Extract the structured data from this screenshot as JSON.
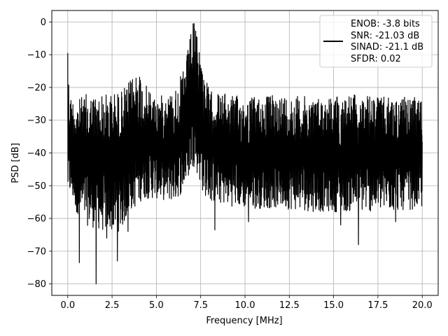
{
  "chart_data": {
    "type": "line",
    "title": "",
    "xlabel": "Frequency [MHz]",
    "ylabel": "PSD [dB]",
    "xlim": [
      -0.9,
      20.9
    ],
    "ylim": [
      -83.5,
      3.5
    ],
    "xticks": [
      0,
      2.5,
      5,
      7.5,
      10,
      12.5,
      15,
      17.5,
      20
    ],
    "xtick_labels": [
      "0.0",
      "2.5",
      "5.0",
      "7.5",
      "10.0",
      "12.5",
      "15.0",
      "17.5",
      "20.0"
    ],
    "yticks": [
      0,
      -10,
      -20,
      -30,
      -40,
      -50,
      -60,
      -70,
      -80
    ],
    "ytick_labels": [
      "0",
      "−10",
      "−20",
      "−30",
      "−40",
      "−50",
      "−60",
      "−70",
      "−80"
    ],
    "grid": true,
    "legend_position": "top-right",
    "line_color": "#000000",
    "series": [
      {
        "description": "dense noisy PSD trace; band between upper and lower envelopes, with a spectral peak near 7.1 MHz",
        "color": "#000000",
        "envelope": {
          "x": [
            0.0,
            0.1,
            0.5,
            1.0,
            2.0,
            3.0,
            3.5,
            4.0,
            4.2,
            5.0,
            6.0,
            6.5,
            6.8,
            7.0,
            7.1,
            7.2,
            7.4,
            7.6,
            8.0,
            9.0,
            10.0,
            12.0,
            14.0,
            16.0,
            18.0,
            20.0
          ],
          "upper": [
            -9.5,
            -22,
            -24,
            -22,
            -22,
            -21,
            -18,
            -13,
            -18,
            -23,
            -21,
            -15,
            -8,
            -1,
            0,
            -1,
            -6,
            -13,
            -21,
            -22,
            -23,
            -22,
            -23,
            -22,
            -23,
            -23
          ],
          "lower": [
            -55,
            -53,
            -58,
            -62,
            -64,
            -64,
            -58,
            -56,
            -54,
            -54,
            -55,
            -52,
            -48,
            -45,
            -44,
            -45,
            -48,
            -52,
            -55,
            -56,
            -57,
            -57,
            -58,
            -58,
            -58,
            -57
          ]
        },
        "spikes_down": [
          {
            "x": 0.5,
            "y": -58
          },
          {
            "x": 0.65,
            "y": -73.5
          },
          {
            "x": 1.6,
            "y": -80
          },
          {
            "x": 2.2,
            "y": -66
          },
          {
            "x": 2.8,
            "y": -73
          },
          {
            "x": 3.4,
            "y": -64
          },
          {
            "x": 8.3,
            "y": -63.5
          },
          {
            "x": 10.2,
            "y": -61
          },
          {
            "x": 15.4,
            "y": -62
          },
          {
            "x": 16.4,
            "y": -68
          },
          {
            "x": 18.5,
            "y": -61
          }
        ]
      }
    ]
  },
  "legend": {
    "lines": [
      "ENOB: -3.8 bits",
      "SNR: -21.03 dB",
      "SINAD: -21.1 dB",
      "SFDR: 0.02"
    ]
  }
}
